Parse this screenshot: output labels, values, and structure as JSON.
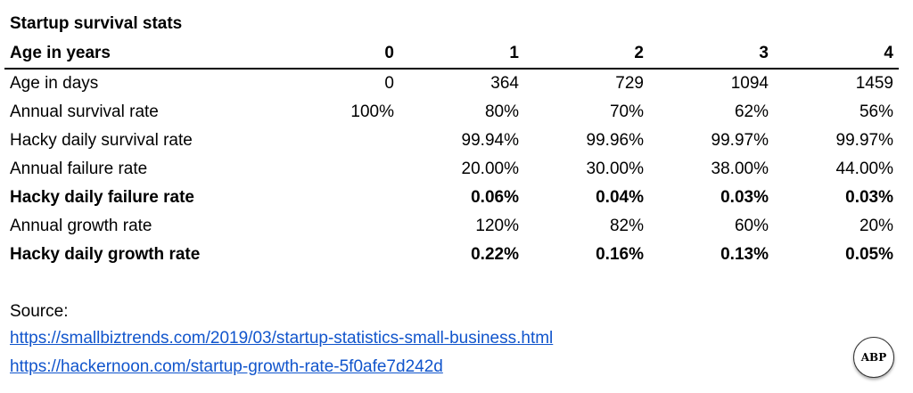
{
  "title": "Startup survival stats",
  "header": {
    "label": "Age in years",
    "columns": [
      "0",
      "1",
      "2",
      "3",
      "4"
    ]
  },
  "rows": [
    {
      "label": "Age in days",
      "bold": false,
      "values": [
        "0",
        "364",
        "729",
        "1094",
        "1459"
      ]
    },
    {
      "label": "Annual survival rate",
      "bold": false,
      "values": [
        "100%",
        "80%",
        "70%",
        "62%",
        "56%"
      ]
    },
    {
      "label": "Hacky daily survival rate",
      "bold": false,
      "values": [
        "",
        "99.94%",
        "99.96%",
        "99.97%",
        "99.97%"
      ]
    },
    {
      "label": "Annual failure rate",
      "bold": false,
      "values": [
        "",
        "20.00%",
        "30.00%",
        "38.00%",
        "44.00%"
      ]
    },
    {
      "label": "Hacky daily failure rate",
      "bold": true,
      "values": [
        "",
        "0.06%",
        "0.04%",
        "0.03%",
        "0.03%"
      ]
    },
    {
      "label": "Annual growth rate",
      "bold": false,
      "values": [
        "",
        "120%",
        "82%",
        "60%",
        "20%"
      ]
    },
    {
      "label": "Hacky daily growth rate",
      "bold": true,
      "values": [
        "",
        "0.22%",
        "0.16%",
        "0.13%",
        "0.05%"
      ]
    }
  ],
  "source": {
    "label": "Source:",
    "links": [
      "https://smallbiztrends.com/2019/03/startup-statistics-small-business.html",
      "https://hackernoon.com/startup-growth-rate-5f0afe7d242d"
    ]
  },
  "logo": {
    "text": "ABP"
  }
}
